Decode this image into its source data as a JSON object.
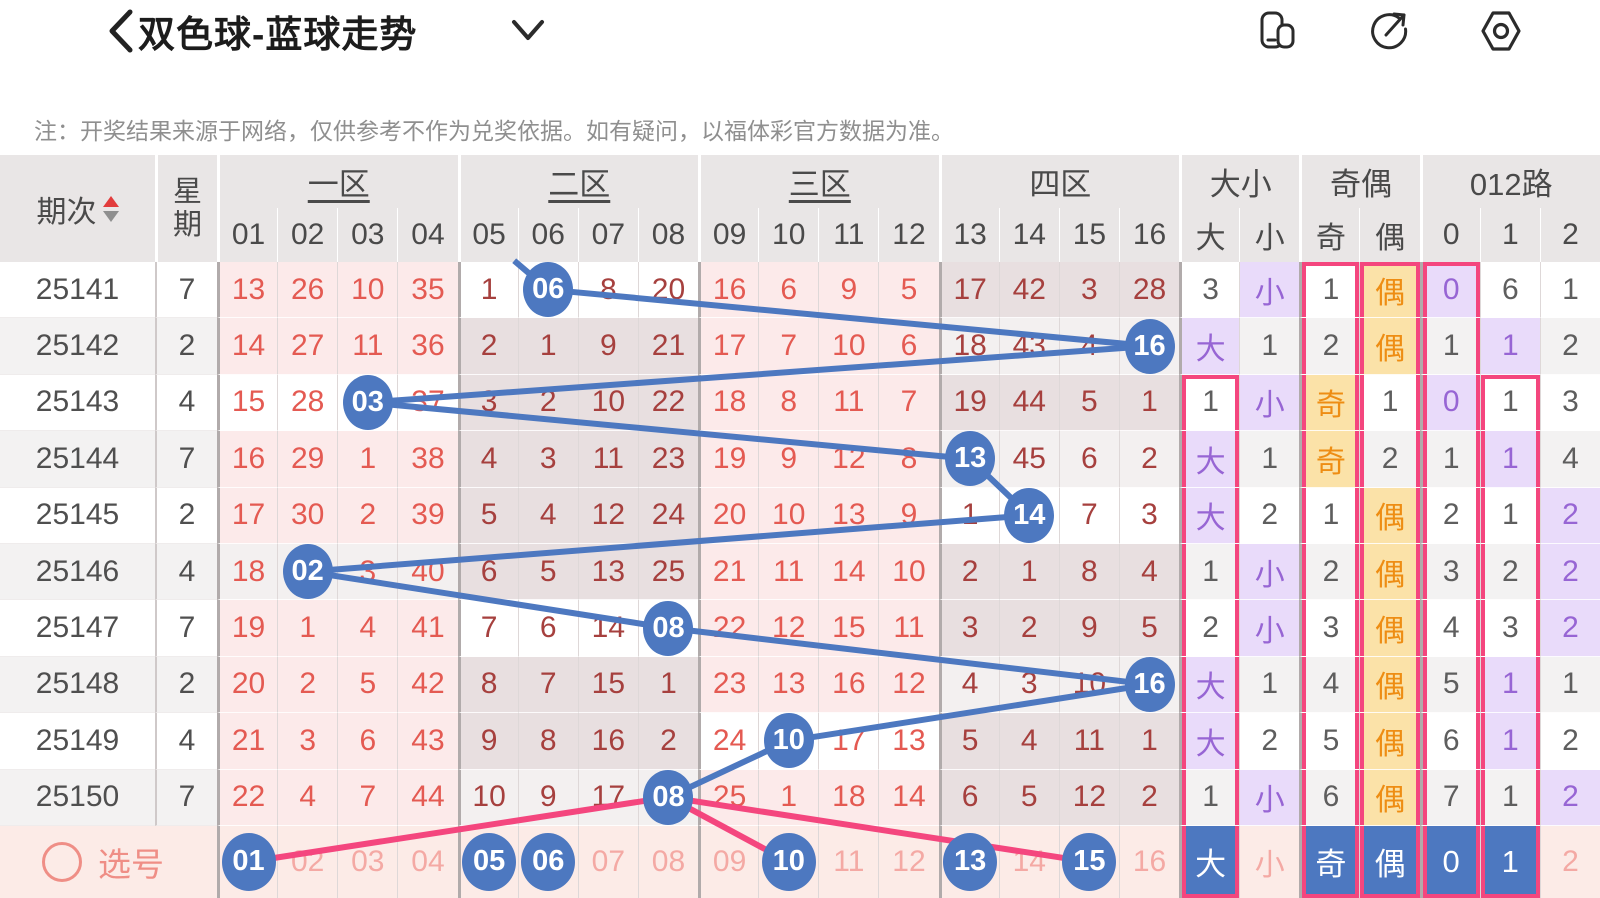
{
  "nav": {
    "title": "双色球-蓝球走势",
    "back_icon": "chevron-left-icon",
    "dropdown_icon": "chevron-down-icon",
    "action_icons": [
      "multi-window-icon",
      "share-icon",
      "settings-icon"
    ]
  },
  "note": "注：开奖结果来源于网络，仅供参考不作为兑奖依据。如有疑问，以福体彩官方数据为准。",
  "table": {
    "period_col": "期次",
    "week_col_chars": [
      "星",
      "期"
    ],
    "groups": [
      {
        "label": "一区",
        "cols": [
          "01",
          "02",
          "03",
          "04"
        ],
        "underline": true
      },
      {
        "label": "二区",
        "cols": [
          "05",
          "06",
          "07",
          "08"
        ],
        "underline": true
      },
      {
        "label": "三区",
        "cols": [
          "09",
          "10",
          "11",
          "12"
        ],
        "underline": true
      },
      {
        "label": "四区",
        "cols": [
          "13",
          "14",
          "15",
          "16"
        ],
        "underline": false
      },
      {
        "label": "大小",
        "cols": [
          "大",
          "小"
        ],
        "underline": false
      },
      {
        "label": "奇偶",
        "cols": [
          "奇",
          "偶"
        ],
        "underline": false
      },
      {
        "label": "012路",
        "cols": [
          "0",
          "1",
          "2"
        ],
        "underline": false
      }
    ],
    "rows": [
      {
        "period": "25141",
        "week": "7",
        "nums": [
          "13",
          "26",
          "10",
          "35",
          "1",
          "06",
          "8",
          "20",
          "16",
          "6",
          "9",
          "5",
          "17",
          "42",
          "3",
          "28"
        ],
        "hit": 5,
        "hit_zone": 1,
        "attrs": [
          {
            "v": "3"
          },
          {
            "v": "小",
            "hit": true
          },
          {
            "v": "1"
          },
          {
            "v": "偶",
            "hit": true
          },
          {
            "v": "0",
            "hit": true
          },
          {
            "v": "6"
          },
          {
            "v": "1"
          }
        ]
      },
      {
        "period": "25142",
        "week": "2",
        "nums": [
          "14",
          "27",
          "11",
          "36",
          "2",
          "1",
          "9",
          "21",
          "17",
          "7",
          "10",
          "6",
          "18",
          "43",
          "4",
          "16"
        ],
        "hit": 15,
        "hit_zone": 3,
        "attrs": [
          {
            "v": "大",
            "hit": true
          },
          {
            "v": "1"
          },
          {
            "v": "2"
          },
          {
            "v": "偶",
            "hit": true
          },
          {
            "v": "1"
          },
          {
            "v": "1",
            "hit": true
          },
          {
            "v": "2"
          }
        ]
      },
      {
        "period": "25143",
        "week": "4",
        "nums": [
          "15",
          "28",
          "03",
          "37",
          "3",
          "2",
          "10",
          "22",
          "18",
          "8",
          "11",
          "7",
          "19",
          "44",
          "5",
          "1"
        ],
        "hit": 2,
        "hit_zone": 0,
        "attrs": [
          {
            "v": "1"
          },
          {
            "v": "小",
            "hit": true
          },
          {
            "v": "奇",
            "hit": true
          },
          {
            "v": "1"
          },
          {
            "v": "0",
            "hit": true
          },
          {
            "v": "1"
          },
          {
            "v": "3"
          }
        ]
      },
      {
        "period": "25144",
        "week": "7",
        "nums": [
          "16",
          "29",
          "1",
          "38",
          "4",
          "3",
          "11",
          "23",
          "19",
          "9",
          "12",
          "8",
          "13",
          "45",
          "6",
          "2"
        ],
        "hit": 12,
        "hit_zone": 3,
        "attrs": [
          {
            "v": "大",
            "hit": true
          },
          {
            "v": "1"
          },
          {
            "v": "奇",
            "hit": true
          },
          {
            "v": "2"
          },
          {
            "v": "1"
          },
          {
            "v": "1",
            "hit": true
          },
          {
            "v": "4"
          }
        ]
      },
      {
        "period": "25145",
        "week": "2",
        "nums": [
          "17",
          "30",
          "2",
          "39",
          "5",
          "4",
          "12",
          "24",
          "20",
          "10",
          "13",
          "9",
          "1",
          "14",
          "7",
          "3"
        ],
        "hit": 13,
        "hit_zone": 3,
        "attrs": [
          {
            "v": "大",
            "hit": true
          },
          {
            "v": "2"
          },
          {
            "v": "1"
          },
          {
            "v": "偶",
            "hit": true
          },
          {
            "v": "2"
          },
          {
            "v": "1"
          },
          {
            "v": "2",
            "hit": true
          }
        ]
      },
      {
        "period": "25146",
        "week": "4",
        "nums": [
          "18",
          "02",
          "3",
          "40",
          "6",
          "5",
          "13",
          "25",
          "21",
          "11",
          "14",
          "10",
          "2",
          "1",
          "8",
          "4"
        ],
        "hit": 1,
        "hit_zone": 0,
        "attrs": [
          {
            "v": "1"
          },
          {
            "v": "小",
            "hit": true
          },
          {
            "v": "2"
          },
          {
            "v": "偶",
            "hit": true
          },
          {
            "v": "3"
          },
          {
            "v": "2"
          },
          {
            "v": "2",
            "hit": true
          }
        ]
      },
      {
        "period": "25147",
        "week": "7",
        "nums": [
          "19",
          "1",
          "4",
          "41",
          "7",
          "6",
          "14",
          "08",
          "22",
          "12",
          "15",
          "11",
          "3",
          "2",
          "9",
          "5"
        ],
        "hit": 7,
        "hit_zone": 1,
        "attrs": [
          {
            "v": "2"
          },
          {
            "v": "小",
            "hit": true
          },
          {
            "v": "3"
          },
          {
            "v": "偶",
            "hit": true
          },
          {
            "v": "4"
          },
          {
            "v": "3"
          },
          {
            "v": "2",
            "hit": true
          }
        ]
      },
      {
        "period": "25148",
        "week": "2",
        "nums": [
          "20",
          "2",
          "5",
          "42",
          "8",
          "7",
          "15",
          "1",
          "23",
          "13",
          "16",
          "12",
          "4",
          "3",
          "10",
          "16"
        ],
        "hit": 15,
        "hit_zone": 3,
        "attrs": [
          {
            "v": "大",
            "hit": true
          },
          {
            "v": "1"
          },
          {
            "v": "4"
          },
          {
            "v": "偶",
            "hit": true
          },
          {
            "v": "5"
          },
          {
            "v": "1",
            "hit": true
          },
          {
            "v": "1"
          }
        ]
      },
      {
        "period": "25149",
        "week": "4",
        "nums": [
          "21",
          "3",
          "6",
          "43",
          "9",
          "8",
          "16",
          "2",
          "24",
          "10",
          "17",
          "13",
          "5",
          "4",
          "11",
          "1"
        ],
        "hit": 9,
        "hit_zone": 2,
        "attrs": [
          {
            "v": "大",
            "hit": true
          },
          {
            "v": "2"
          },
          {
            "v": "5"
          },
          {
            "v": "偶",
            "hit": true
          },
          {
            "v": "6"
          },
          {
            "v": "1",
            "hit": true
          },
          {
            "v": "2"
          }
        ]
      },
      {
        "period": "25150",
        "week": "7",
        "nums": [
          "22",
          "4",
          "7",
          "44",
          "10",
          "9",
          "17",
          "08",
          "25",
          "1",
          "18",
          "14",
          "6",
          "5",
          "12",
          "2"
        ],
        "hit": 7,
        "hit_zone": 1,
        "attrs": [
          {
            "v": "1"
          },
          {
            "v": "小",
            "hit": true
          },
          {
            "v": "6"
          },
          {
            "v": "偶",
            "hit": true
          },
          {
            "v": "7"
          },
          {
            "v": "1"
          },
          {
            "v": "2",
            "hit": true
          }
        ]
      }
    ],
    "framed_columns": [
      {
        "col": "大",
        "from_row": 3
      },
      {
        "col": "奇",
        "from_row": 1
      },
      {
        "col": "偶",
        "from_row": 1
      },
      {
        "col": "0",
        "from_row": 1
      },
      {
        "col": "1",
        "from_row": 3
      }
    ]
  },
  "selection": {
    "label": "选号",
    "numbers": [
      "01",
      "02",
      "03",
      "04",
      "05",
      "06",
      "07",
      "08",
      "09",
      "10",
      "11",
      "12",
      "13",
      "14",
      "15",
      "16"
    ],
    "selected_numbers": [
      "01",
      "05",
      "06",
      "10",
      "13",
      "15"
    ],
    "attr_labels": [
      "大",
      "小",
      "奇",
      "偶",
      "0",
      "1",
      "2"
    ],
    "selected_attrs": [
      "大",
      "奇",
      "偶",
      "0",
      "1"
    ],
    "lines_from_last_hit_to": [
      "01",
      "10",
      "15"
    ]
  },
  "colors": {
    "accent_blue": "#4d78c0",
    "accent_pink": "#f4467e",
    "hit_purple_text": "#9765d4",
    "hit_purple_bg": "#e9dbfa",
    "hit_orange_text": "#ee8d13",
    "hit_orange_bg": "#fbe2a8",
    "zone_pink_bg": "#fceaea",
    "zone_gray_bg": "#e8dfe0",
    "miss_red_text": "#e45a52",
    "miss_dark_red_text": "#a6403e"
  }
}
